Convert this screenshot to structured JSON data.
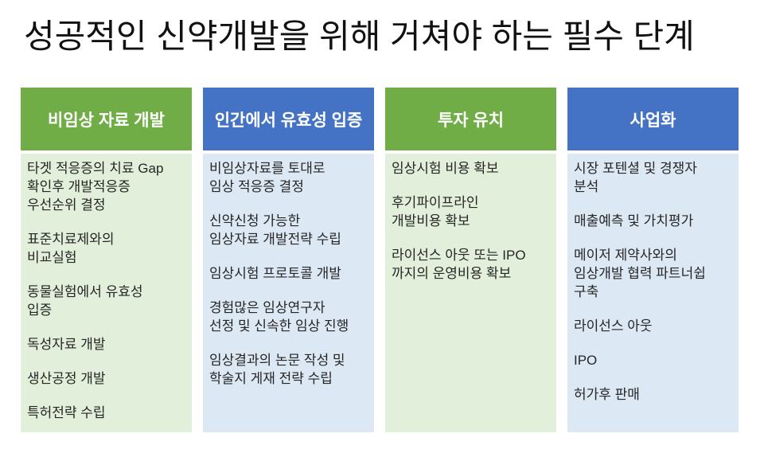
{
  "title": "성공적인 신약개발을 위해 거쳐야 하는 필수 단계",
  "colors": {
    "title_text": "#111111",
    "header_text": "#FFFFFF",
    "body_text": "#262626",
    "green_header": "#70AD47",
    "blue_header": "#4472C4",
    "green_body": "#E2EFDA",
    "blue_body": "#DCE8F3"
  },
  "columns": [
    {
      "header": "비임상 자료 개발",
      "theme": "green",
      "items": [
        "타겟 적응증의 치료 Gap\n확인후 개발적응증\n우선순위 결정",
        "표준치료제와의\n비교실험",
        "동물실험에서 유효성\n입증",
        "독성자료 개발",
        "생산공정 개발",
        "특허전략 수립"
      ]
    },
    {
      "header": "인간에서 유효성 입증",
      "theme": "blue",
      "items": [
        "비임상자료를 토대로\n임상 적응증 결정",
        "신약신청 가능한\n임상자료 개발전략 수립",
        "임상시험 프로토콜 개발",
        "경험많은 임상연구자\n선정 및 신속한 임상 진행",
        "임상결과의 논문 작성 및\n학술지 게재 전략 수립"
      ]
    },
    {
      "header": "투자 유치",
      "theme": "green",
      "items": [
        "임상시험 비용 확보",
        "후기파이프라인\n개발비용 확보",
        "라이선스 아웃 또는 IPO\n까지의 운영비용 확보"
      ]
    },
    {
      "header": "사업화",
      "theme": "blue",
      "items": [
        "시장 포텐셜 및 경쟁자\n분석",
        "매출예측 및 가치평가",
        "메이저 제약사와의\n임상개발 협력 파트너쉽\n구축",
        "라이선스 아웃",
        "IPO",
        "허가후 판매"
      ]
    }
  ]
}
